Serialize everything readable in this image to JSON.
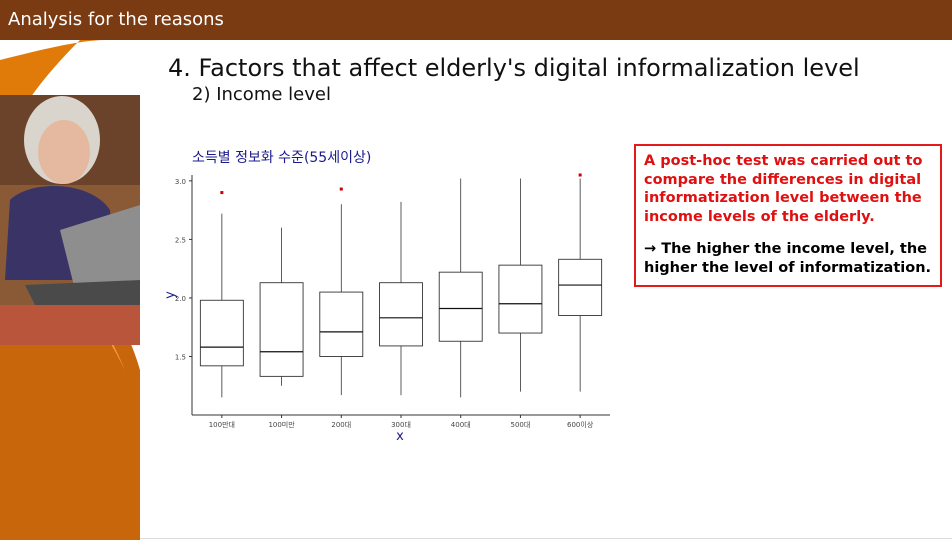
{
  "header": {
    "title": "Analysis for the reasons"
  },
  "slide": {
    "heading": "4. Factors that affect elderly's digital informalization level",
    "subheading": "2) Income level"
  },
  "note": {
    "finding": "A post-hoc test was carried out to compare the differences in digital informatization level between the income levels of the elderly.",
    "conclusion": "→ The higher the income level, the higher the level of informatization."
  },
  "colors": {
    "header_bg": "#7a3a12",
    "accent_orange": "#e07b0a",
    "note_red": "#e31a1a",
    "chart_title": "#1a1a8c",
    "outlier": "#cc0000"
  },
  "chart_data": {
    "type": "boxplot",
    "title": "소득별 정보화 수준(55세이상)",
    "xlabel": "x",
    "ylabel": "y",
    "ylim": [
      1.0,
      3.05
    ],
    "yticks": [
      "1.5",
      "2.0",
      "2.5",
      "3.0"
    ],
    "ytick_values": [
      1.5,
      2.0,
      2.5,
      3.0
    ],
    "categories": [
      "100만대",
      "100미만",
      "200대",
      "300대",
      "400대",
      "500대",
      "600이상"
    ],
    "boxes": [
      {
        "whisker_low": 1.15,
        "q1": 1.42,
        "median": 1.58,
        "q3": 1.98,
        "whisker_high": 2.72,
        "outliers": [
          2.9
        ]
      },
      {
        "whisker_low": 1.25,
        "q1": 1.33,
        "median": 1.54,
        "q3": 2.13,
        "whisker_high": 2.6,
        "outliers": []
      },
      {
        "whisker_low": 1.17,
        "q1": 1.5,
        "median": 1.71,
        "q3": 2.05,
        "whisker_high": 2.8,
        "outliers": [
          2.93
        ]
      },
      {
        "whisker_low": 1.17,
        "q1": 1.59,
        "median": 1.83,
        "q3": 2.13,
        "whisker_high": 2.82,
        "outliers": []
      },
      {
        "whisker_low": 1.15,
        "q1": 1.63,
        "median": 1.91,
        "q3": 2.22,
        "whisker_high": 3.02,
        "outliers": []
      },
      {
        "whisker_low": 1.2,
        "q1": 1.7,
        "median": 1.95,
        "q3": 2.28,
        "whisker_high": 3.02,
        "outliers": []
      },
      {
        "whisker_low": 1.2,
        "q1": 1.85,
        "median": 2.11,
        "q3": 2.33,
        "whisker_high": 3.02,
        "outliers": [
          3.05
        ]
      }
    ],
    "grid": false,
    "legend": "none"
  }
}
